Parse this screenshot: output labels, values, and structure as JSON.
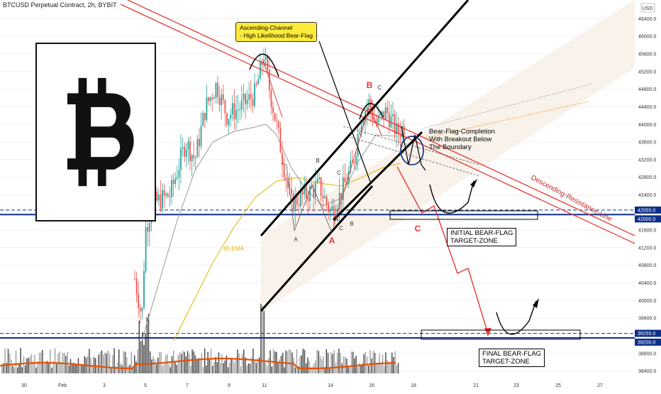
{
  "header": {
    "title": "BTCUSD Perpetual Contract, 2h, BYBIT"
  },
  "colors": {
    "up": "#26a69a",
    "down": "#ef5350",
    "resistance": "#e53935",
    "channel": "#000000",
    "support": "#0d2f8a",
    "ema": "#e5b400",
    "ma": "#999999",
    "volume_ma": "#e65100",
    "label_red": "#e53935"
  },
  "icons": {
    "logo": "bitcoin-logo-icon"
  },
  "chart_data": {
    "type": "candlestick",
    "title": "BTCUSD Perpetual Contract, 2h, BYBIT",
    "currency_label": "USD",
    "ylim": [
      38000,
      46800
    ],
    "y_ticks": [
      "46400.0",
      "46000.0",
      "45600.0",
      "45200.0",
      "44800.0",
      "44400.0",
      "44000.0",
      "43600.0",
      "43200.0",
      "42800.0",
      "42400.0",
      "41600.0",
      "41200.0",
      "40800.0",
      "40400.0",
      "40000.0",
      "39600.0",
      "38800.0",
      "38400.0"
    ],
    "x_ticks": [
      "30",
      "Feb",
      "3",
      "5",
      "7",
      "9",
      "11",
      "14",
      "16",
      "18",
      "21",
      "23",
      "25",
      "27"
    ],
    "price_badges": [
      {
        "value": "42055.0",
        "kind": "level"
      },
      {
        "value": "42000.0",
        "kind": "level"
      },
      {
        "value": "39255.0",
        "kind": "level"
      },
      {
        "value": "39200.0",
        "kind": "level"
      }
    ],
    "support_zones": [
      {
        "name": "INITIAL BEAR-FLAG TARGET-ZONE",
        "low": 42000,
        "high": 42055
      },
      {
        "name": "FINAL BEAR-FLAG TARGET-ZONE",
        "low": 39200,
        "high": 39255
      }
    ],
    "ema_label": "65-EMA",
    "resistance_label": "Descending-Resistance-Line",
    "annotations": {
      "channel_note": "Ascending-Channel\n- High Likelihood Bear-Flag",
      "completion_note": "Bear-Flag-Completion\nWith Breakout Below\nThe Boundary",
      "initial_target": "INITIAL BEAR-FLAG\nTARGET-ZONE",
      "final_target": "FINAL BEAR-FLAG\nTARGET-ZONE"
    },
    "wave_labels": [
      {
        "text": "A",
        "color": "#333"
      },
      {
        "text": "B",
        "color": "#333"
      },
      {
        "text": "C",
        "color": "#333"
      },
      {
        "text": "A",
        "color": "#333"
      },
      {
        "text": "B",
        "color": "#333"
      },
      {
        "text": "C",
        "color": "#333"
      },
      {
        "text": "A",
        "color": "#e53935"
      },
      {
        "text": "B",
        "color": "#e53935"
      },
      {
        "text": "C",
        "color": "#333"
      },
      {
        "text": "C",
        "color": "#e53935"
      }
    ]
  }
}
